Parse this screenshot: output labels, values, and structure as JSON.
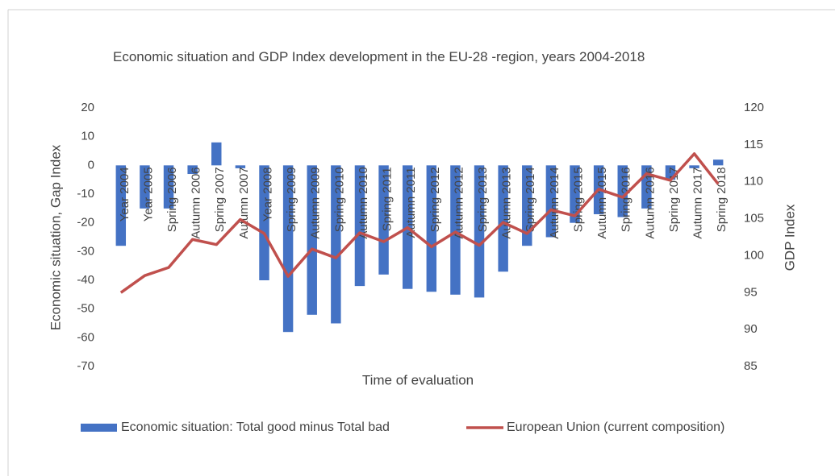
{
  "chart_data": {
    "type": "bar_line",
    "title": "Economic situation and GDP Index development in the EU-28 -region, years 2004-2018",
    "x_label": "Time of evaluation",
    "y_label": "Economic situation, Gap Index",
    "y2_label": "GDP Index",
    "categories": [
      "Year 2004",
      "Year 2005",
      "Spring 2006",
      "Autumn 2006",
      "Spring 2007",
      "Autumn 2007",
      "Year 2008",
      "Spring 2009",
      "Autumn 2009",
      "Spring 2010",
      "Autumn 2010",
      "Spring 2011",
      "Autumn 2011",
      "Spring 2012",
      "Autumn 2012",
      "Spring 2013",
      "Autumn 2013",
      "Spring 2014",
      "Autumn 2014",
      "Spring 2015",
      "Autumn 2015",
      "Spring 2016",
      "Autumn 2016",
      "Spring 2017",
      "Autumn 2017",
      "Spring 2018"
    ],
    "series": [
      {
        "name": "Economic situation: Total good minus Total bad",
        "type": "bar",
        "color": "#4472c4",
        "values": [
          -28,
          -15,
          -15,
          -3,
          8,
          -1,
          -40,
          -58,
          -52,
          -55,
          -42,
          -38,
          -43,
          -44,
          -45,
          -46,
          -37,
          -28,
          -25,
          -20,
          -17,
          -18,
          -15,
          -5,
          -1,
          2
        ]
      },
      {
        "name": "European Union (current composition)",
        "type": "line",
        "axis": "y2",
        "color": "#c0504d",
        "values": [
          95.0,
          97.3,
          98.4,
          102.2,
          101.5,
          104.9,
          103.0,
          97.2,
          100.9,
          99.7,
          103.1,
          101.9,
          103.8,
          101.2,
          103.2,
          101.4,
          104.5,
          103.0,
          106.2,
          105.4,
          109.0,
          107.9,
          111.1,
          110.2,
          113.8,
          109.7
        ]
      }
    ],
    "ylim": [
      -70,
      20
    ],
    "yticks": [
      20,
      10,
      0,
      -10,
      -20,
      -30,
      -40,
      -50,
      -60,
      -70
    ],
    "y2lim": [
      85,
      120
    ],
    "y2ticks": [
      120,
      115,
      110,
      105,
      100,
      95,
      90,
      85
    ],
    "legend": "bottom",
    "grid": false
  }
}
